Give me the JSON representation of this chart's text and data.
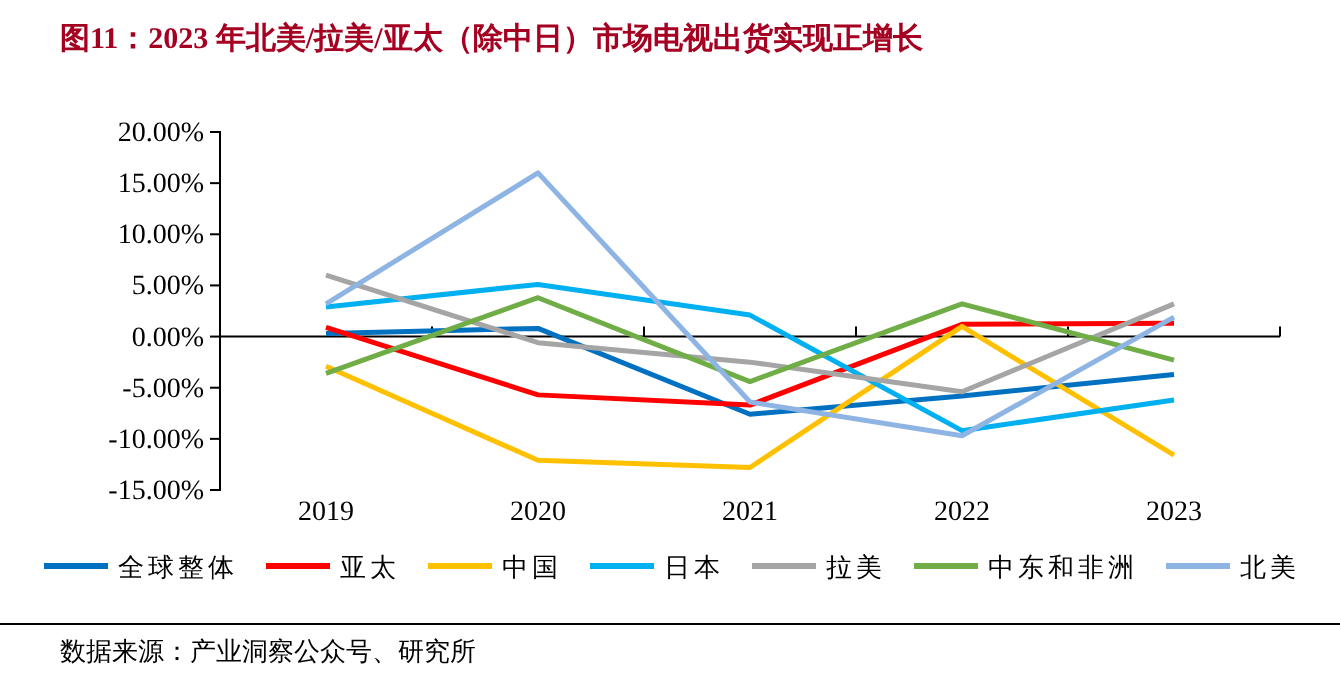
{
  "chart_data": {
    "type": "line",
    "title": "图11：2023 年北美/拉美/亚太（除中日）市场电视出货实现正增长",
    "categories": [
      "2019",
      "2020",
      "2021",
      "2022",
      "2023"
    ],
    "series": [
      {
        "name": "全球整体",
        "color": "#0070c0",
        "values": [
          0.3,
          0.8,
          -7.6,
          -5.8,
          -3.7
        ]
      },
      {
        "name": "亚太",
        "color": "#ff0000",
        "values": [
          0.9,
          -5.7,
          -6.7,
          1.2,
          1.3
        ]
      },
      {
        "name": "中国",
        "color": "#ffc000",
        "values": [
          -2.9,
          -12.1,
          -12.8,
          1.0,
          -11.6
        ]
      },
      {
        "name": "日本",
        "color": "#00b0f0",
        "values": [
          2.9,
          5.1,
          2.1,
          -9.2,
          -6.2
        ]
      },
      {
        "name": "拉美",
        "color": "#a5a5a5",
        "values": [
          6.0,
          -0.6,
          -2.5,
          -5.4,
          3.2
        ]
      },
      {
        "name": "中东和非洲",
        "color": "#70ad47",
        "values": [
          -3.6,
          3.8,
          -4.4,
          3.2,
          -2.3
        ]
      },
      {
        "name": "北美",
        "color": "#8eb4e3",
        "values": [
          3.2,
          16.0,
          -6.4,
          -9.7,
          1.9
        ]
      }
    ],
    "ylim": [
      -15,
      20
    ],
    "yticks": [
      {
        "value": 20,
        "label": "20.00%"
      },
      {
        "value": 15,
        "label": "15.00%"
      },
      {
        "value": 10,
        "label": "10.00%"
      },
      {
        "value": 5,
        "label": "5.00%"
      },
      {
        "value": 0,
        "label": "0.00%"
      },
      {
        "value": -5,
        "label": "-5.00%"
      },
      {
        "value": -10,
        "label": "-10.00%"
      },
      {
        "value": -15,
        "label": "-15.00%"
      }
    ],
    "legend": "bottom",
    "marker": "none",
    "line_style": "solid",
    "annotations": [
      "数据来源：产业洞察公众号、研究所"
    ]
  }
}
